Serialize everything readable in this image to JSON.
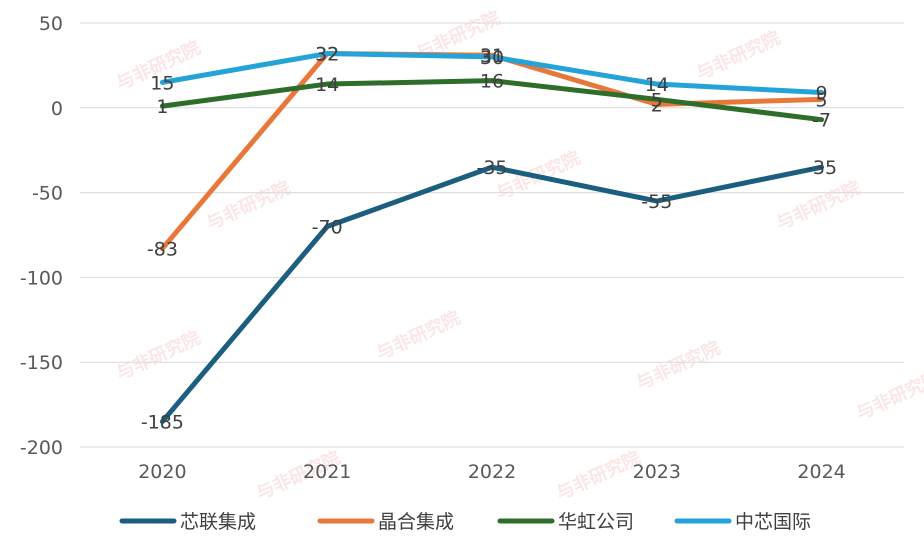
{
  "chart_data": {
    "type": "line",
    "title": "",
    "xlabel": "",
    "ylabel": "",
    "categories": [
      "2020",
      "2021",
      "2022",
      "2023",
      "2024"
    ],
    "ylim": [
      -200,
      50
    ],
    "yticks": [
      50,
      0,
      -50,
      -100,
      -150,
      -200
    ],
    "grid": true,
    "legend_position": "bottom",
    "series": [
      {
        "name": "芯联集成",
        "color": "#1b5e80",
        "values": [
          -185,
          -70,
          -35,
          -55,
          -35
        ]
      },
      {
        "name": "晶合集成",
        "color": "#e8773a",
        "values": [
          -83,
          32,
          31,
          2,
          5
        ]
      },
      {
        "name": "华虹公司",
        "color": "#2e6e2a",
        "values": [
          1,
          14,
          16,
          5,
          -7
        ]
      },
      {
        "name": "中芯国际",
        "color": "#23a3d8",
        "values": [
          15,
          32,
          30,
          14,
          9
        ]
      }
    ]
  },
  "watermark": {
    "text": "与非研究院"
  }
}
